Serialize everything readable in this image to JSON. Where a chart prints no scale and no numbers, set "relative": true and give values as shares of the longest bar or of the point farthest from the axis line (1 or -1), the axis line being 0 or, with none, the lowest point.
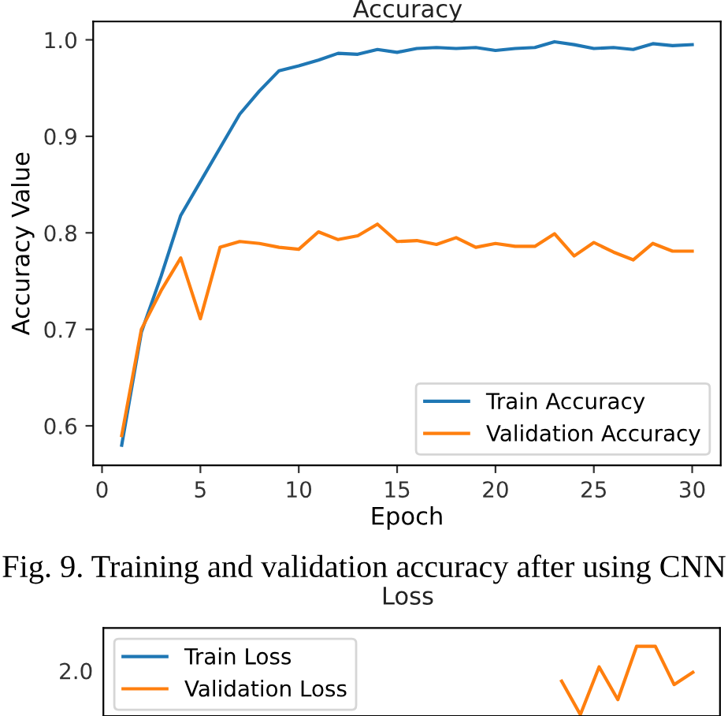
{
  "chart_data": [
    {
      "type": "line",
      "title": "Accuracy",
      "xlabel": "Epoch",
      "ylabel": "Accuracy Value",
      "x": [
        1,
        2,
        3,
        4,
        5,
        6,
        7,
        8,
        9,
        10,
        11,
        12,
        13,
        14,
        15,
        16,
        17,
        18,
        19,
        20,
        21,
        22,
        23,
        24,
        25,
        26,
        27,
        28,
        29,
        30
      ],
      "series": [
        {
          "name": "Train Accuracy",
          "color": "#1f77b4",
          "values": [
            0.58,
            0.697,
            0.755,
            0.818,
            0.853,
            0.888,
            0.923,
            0.947,
            0.968,
            0.973,
            0.979,
            0.986,
            0.985,
            0.99,
            0.987,
            0.991,
            0.992,
            0.991,
            0.992,
            0.989,
            0.991,
            0.992,
            0.998,
            0.995,
            0.991,
            0.992,
            0.99,
            0.996,
            0.994,
            0.995
          ]
        },
        {
          "name": "Validation Accuracy",
          "color": "#ff7f0e",
          "values": [
            0.59,
            0.7,
            0.74,
            0.774,
            0.711,
            0.785,
            0.791,
            0.789,
            0.785,
            0.783,
            0.801,
            0.793,
            0.797,
            0.809,
            0.791,
            0.792,
            0.788,
            0.795,
            0.785,
            0.789,
            0.786,
            0.786,
            0.799,
            0.776,
            0.79,
            0.78,
            0.772,
            0.789,
            0.781,
            0.781
          ]
        }
      ],
      "xlim": [
        -0.45,
        31.45
      ],
      "xticks": [
        0,
        5,
        10,
        15,
        20,
        25,
        30
      ],
      "ylim": [
        0.559,
        1.019
      ],
      "yticks": [
        0.6,
        0.7,
        0.8,
        0.9,
        {
          "value": 1.0,
          "label": "1.0"
        }
      ],
      "legend": "bottom right",
      "grid": false,
      "annotations": [
        "Fig. 9. Training and validation accuracy after using CNN"
      ]
    },
    {
      "type": "line",
      "title": "Loss",
      "categories": [
        null,
        null,
        null,
        null,
        null,
        null,
        null,
        null,
        null,
        null,
        null,
        null,
        null,
        null,
        null,
        null,
        null,
        null,
        null,
        null,
        null,
        null,
        null,
        null,
        null,
        null,
        null,
        null,
        null,
        null
      ],
      "series": [
        {
          "name": "Train Loss",
          "color": "#1f77b4",
          "values": [
            null,
            null,
            null,
            null,
            null,
            null,
            null,
            null,
            null,
            null,
            null,
            null,
            null,
            null,
            null,
            null,
            null,
            null,
            null,
            null,
            null,
            null,
            null,
            null,
            null,
            null,
            null,
            null,
            null,
            null
          ]
        },
        {
          "name": "Validation Loss",
          "color": "#ff7f0e",
          "values": [
            null,
            null,
            null,
            null,
            null,
            null,
            null,
            null,
            null,
            null,
            null,
            null,
            null,
            null,
            null,
            null,
            null,
            null,
            null,
            null,
            null,
            null,
            0.49,
            0,
            0.7,
            0.22,
            1,
            1,
            0.44,
            0.62
          ]
        }
      ],
      "relative": true,
      "tick_labels": false,
      "legend": "top left",
      "grid": false,
      "annotations": [
        "2.0"
      ]
    }
  ]
}
